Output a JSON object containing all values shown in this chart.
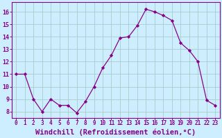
{
  "x": [
    0,
    1,
    2,
    3,
    4,
    5,
    6,
    7,
    8,
    9,
    10,
    11,
    12,
    13,
    14,
    15,
    16,
    17,
    18,
    19,
    20,
    21,
    22,
    23
  ],
  "y": [
    11,
    11,
    9,
    8,
    9,
    8.5,
    8.5,
    7.9,
    8.8,
    10,
    11.5,
    12.5,
    13.9,
    14,
    14.9,
    16.2,
    16,
    15.7,
    15.3,
    13.5,
    12.9,
    12,
    8.9,
    8.5
  ],
  "line_color": "#880088",
  "marker_color": "#880088",
  "bg_color": "#cceeff",
  "grid_color": "#aacccc",
  "xlabel": "Windchill (Refroidissement éolien,°C)",
  "xlim": [
    -0.5,
    23.5
  ],
  "ylim": [
    7.5,
    16.75
  ],
  "yticks": [
    8,
    9,
    10,
    11,
    12,
    13,
    14,
    15,
    16
  ],
  "xticks": [
    0,
    1,
    2,
    3,
    4,
    5,
    6,
    7,
    8,
    9,
    10,
    11,
    12,
    13,
    14,
    15,
    16,
    17,
    18,
    19,
    20,
    21,
    22,
    23
  ],
  "xlabel_color": "#880088",
  "tick_color": "#880088",
  "tick_fontsize": 5.5,
  "xlabel_fontsize": 7.5
}
